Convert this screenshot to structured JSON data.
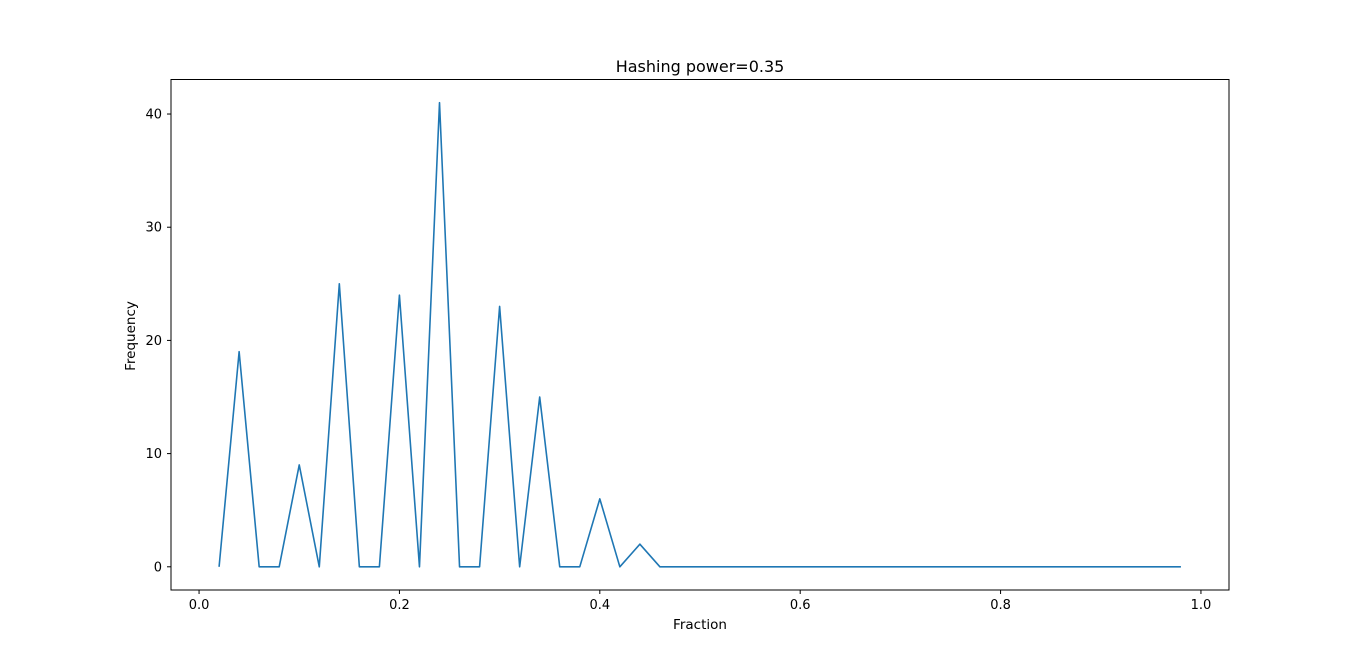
{
  "chart_data": {
    "type": "line",
    "title": "Hashing power=0.35",
    "xlabel": "Fraction",
    "ylabel": "Frequency",
    "xlim": [
      -0.028,
      1.028
    ],
    "ylim": [
      -2.05,
      43.05
    ],
    "xticks": [
      0.0,
      0.2,
      0.4,
      0.6,
      0.8,
      1.0
    ],
    "xtick_labels": [
      "0.0",
      "0.2",
      "0.4",
      "0.6",
      "0.8",
      "1.0"
    ],
    "yticks": [
      0,
      10,
      20,
      30,
      40
    ],
    "ytick_labels": [
      "0",
      "10",
      "20",
      "30",
      "40"
    ],
    "grid": false,
    "series": [
      {
        "color": "#1f77b4",
        "x": [
          0.02,
          0.04,
          0.06,
          0.08,
          0.1,
          0.12,
          0.14,
          0.16,
          0.18,
          0.2,
          0.22,
          0.24,
          0.26,
          0.28,
          0.3,
          0.32,
          0.34,
          0.36,
          0.38,
          0.4,
          0.42,
          0.44,
          0.46,
          0.48,
          0.5,
          0.52,
          0.54,
          0.56,
          0.58,
          0.6,
          0.62,
          0.64,
          0.66,
          0.68,
          0.7,
          0.72,
          0.74,
          0.76,
          0.78,
          0.8,
          0.82,
          0.84,
          0.86,
          0.88,
          0.9,
          0.92,
          0.94,
          0.96,
          0.98
        ],
        "y": [
          0,
          19,
          0,
          0,
          9,
          0,
          25,
          0,
          0,
          24,
          0,
          41,
          0,
          0,
          23,
          0,
          15,
          0,
          0,
          6,
          0,
          2,
          0,
          0,
          0,
          0,
          0,
          0,
          0,
          0,
          0,
          0,
          0,
          0,
          0,
          0,
          0,
          0,
          0,
          0,
          0,
          0,
          0,
          0,
          0,
          0,
          0,
          0,
          0
        ]
      }
    ]
  }
}
